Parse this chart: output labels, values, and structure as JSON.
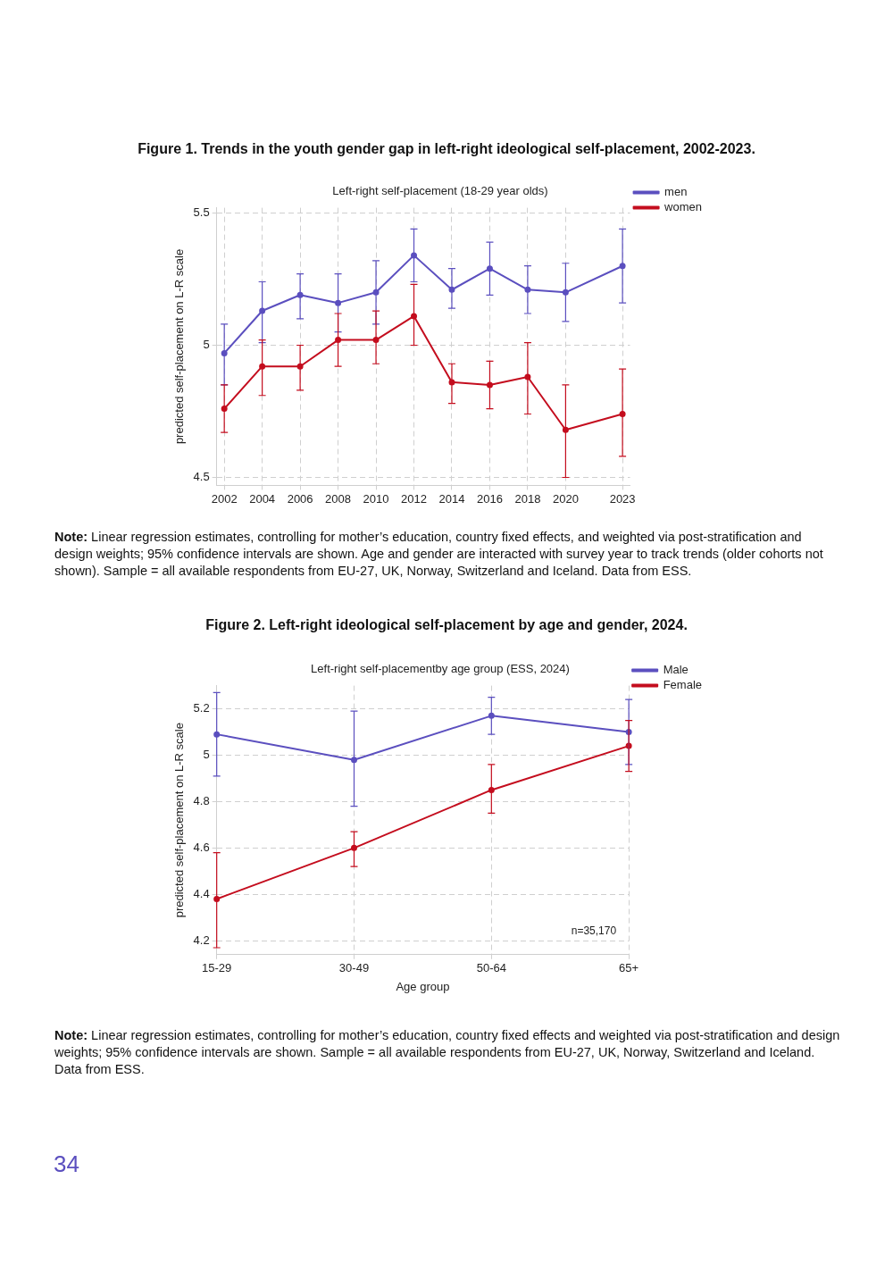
{
  "chart_data": [
    {
      "type": "line",
      "title": "Figure 1. Trends in the youth gender gap in left-right ideological self-placement, 2002-2023.",
      "subtitle": "Left-right self-placement (18-29 year olds)",
      "ylabel": "predicted self-placement on L-R scale",
      "x": [
        2002,
        2004,
        2006,
        2008,
        2010,
        2012,
        2014,
        2016,
        2018,
        2020,
        2023
      ],
      "series": [
        {
          "name": "men",
          "color": "#5b4fbf",
          "values": [
            4.97,
            5.13,
            5.19,
            5.16,
            5.2,
            5.34,
            5.21,
            5.29,
            5.21,
            5.2,
            5.3
          ],
          "errors": [
            [
              4.85,
              5.08
            ],
            [
              5.01,
              5.24
            ],
            [
              5.1,
              5.27
            ],
            [
              5.05,
              5.27
            ],
            [
              5.08,
              5.32
            ],
            [
              5.24,
              5.44
            ],
            [
              5.14,
              5.29
            ],
            [
              5.19,
              5.39
            ],
            [
              5.12,
              5.3
            ],
            [
              5.09,
              5.31
            ],
            [
              5.16,
              5.44
            ]
          ]
        },
        {
          "name": "women",
          "color": "#c40d1e",
          "values": [
            4.76,
            4.92,
            4.92,
            5.02,
            5.02,
            5.11,
            4.86,
            4.85,
            4.88,
            4.68,
            4.74
          ],
          "errors": [
            [
              4.67,
              4.85
            ],
            [
              4.81,
              5.02
            ],
            [
              4.83,
              5.0
            ],
            [
              4.92,
              5.12
            ],
            [
              4.93,
              5.13
            ],
            [
              5.0,
              5.23
            ],
            [
              4.78,
              4.93
            ],
            [
              4.76,
              4.94
            ],
            [
              4.74,
              5.01
            ],
            [
              4.5,
              4.85
            ],
            [
              4.58,
              4.91
            ]
          ]
        }
      ],
      "xlim": [
        2001.6,
        2023.4
      ],
      "xticks": [
        2002,
        2004,
        2006,
        2008,
        2010,
        2012,
        2014,
        2016,
        2018,
        2020,
        2023
      ],
      "ylim": [
        4.47,
        5.52
      ],
      "yticks": [
        4.5,
        5,
        5.5
      ],
      "grid": true,
      "legend": "top right",
      "marker": "circle",
      "line_style": "solid",
      "annotations": [
        "Note: Linear regression estimates, controlling for mother’s education, country fixed effects, and weighted via post-stratification and design weights; 95% confidence intervals are shown. Age and gender are interacted with survey year to track trends (older cohorts not shown). Sample = all available respondents from EU-27, UK, Norway, Switzerland and Iceland. Data from ESS."
      ]
    },
    {
      "type": "line",
      "title": "Figure 2. Left-right ideological self-placement by age and gender, 2024.",
      "subtitle": "Left-right self-placementby age group (ESS, 2024)",
      "xlabel": "Age group",
      "ylabel": "predicted self-placement on L-R scale",
      "categories": [
        "15-29",
        "30-49",
        "50-64",
        "65+"
      ],
      "series": [
        {
          "name": "Male",
          "color": "#5b4fbf",
          "values": [
            5.09,
            4.98,
            5.17,
            5.1
          ],
          "errors": [
            [
              4.91,
              5.27
            ],
            [
              4.78,
              5.19
            ],
            [
              5.09,
              5.25
            ],
            [
              4.96,
              5.24
            ]
          ]
        },
        {
          "name": "Female",
          "color": "#c40d1e",
          "values": [
            4.38,
            4.6,
            4.85,
            5.04
          ],
          "errors": [
            [
              4.17,
              4.58
            ],
            [
              4.52,
              4.67
            ],
            [
              4.75,
              4.96
            ],
            [
              4.93,
              5.15
            ]
          ]
        }
      ],
      "ylim": [
        4.14,
        5.3
      ],
      "yticks": [
        4.2,
        4.4,
        4.6,
        4.8,
        5,
        5.2
      ],
      "grid": true,
      "legend": "top right",
      "marker": "circle",
      "line_style": "solid",
      "annotations": [
        "n=35,170",
        "Note: Linear regression estimates, controlling for mother’s education, country fixed effects and weighted via post-stratification and design weights; 95% confidence intervals are shown. Sample = all available respondents from EU-27, UK, Norway, Switzerland and Iceland. Data from ESS.",
        "34"
      ]
    }
  ]
}
